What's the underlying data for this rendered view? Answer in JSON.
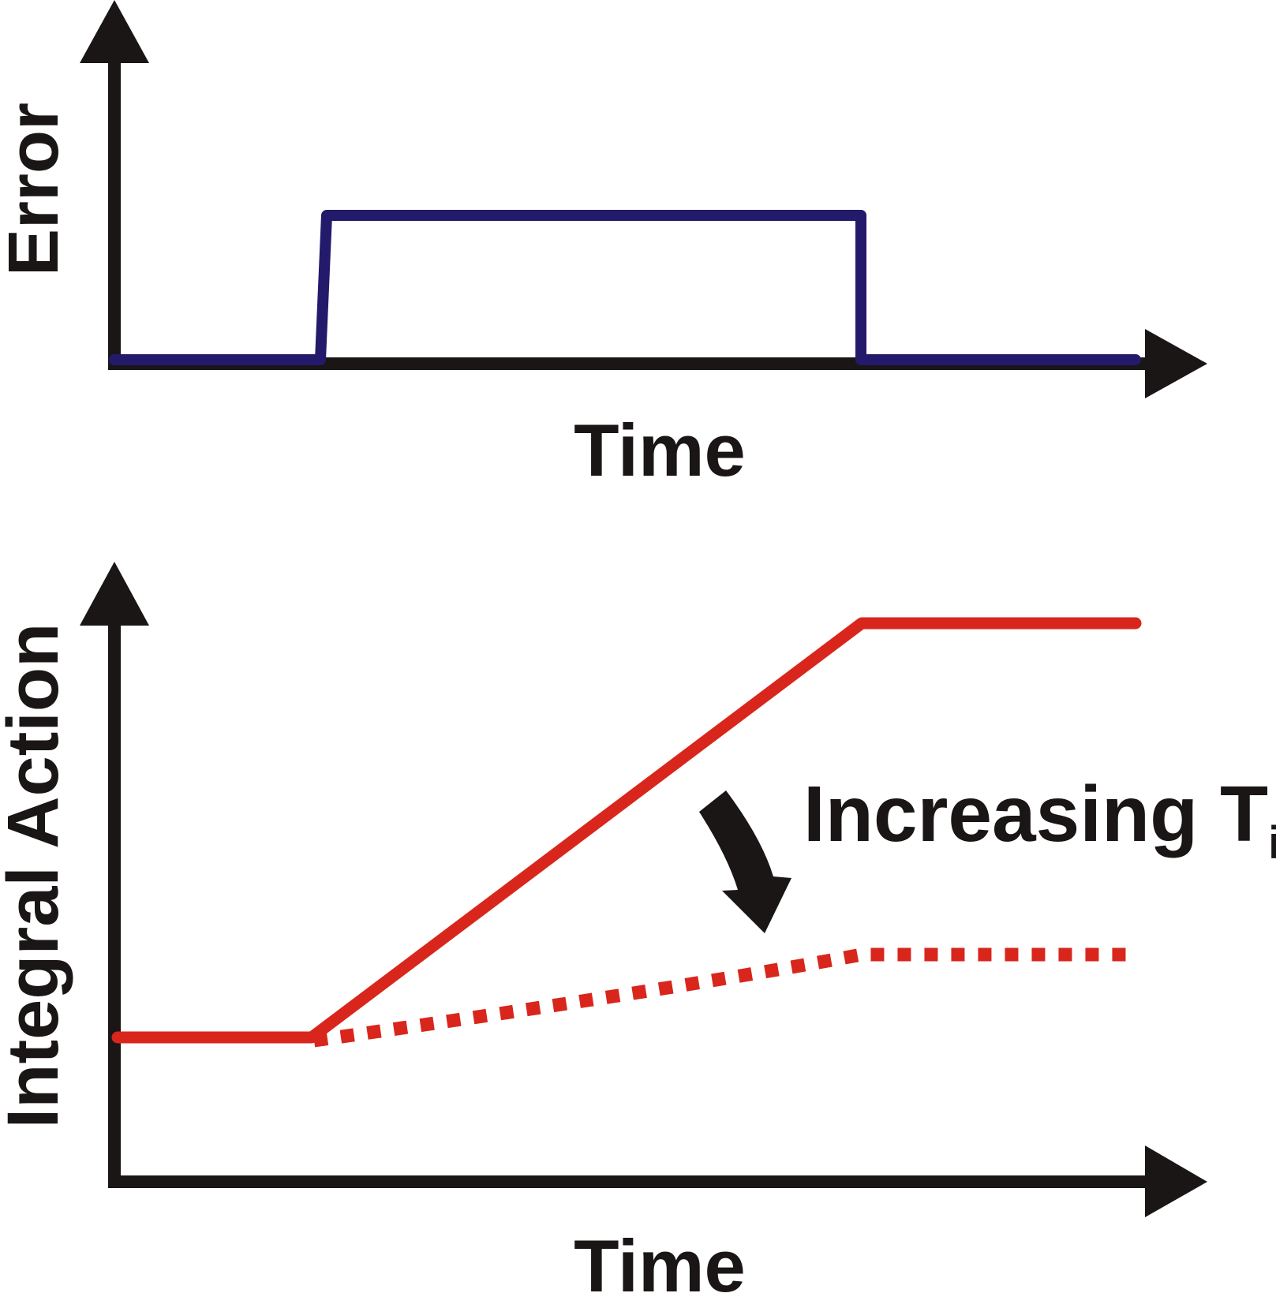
{
  "colors": {
    "axis": "#1a1616",
    "error_signal": "#231a6b",
    "integral_action": "#d9261c"
  },
  "top_panel": {
    "ylabel": "Error",
    "xlabel": "Time"
  },
  "bottom_panel": {
    "ylabel": "Integral Action",
    "xlabel": "Time",
    "annotation": {
      "text": "Increasing T",
      "subscript": "i"
    }
  }
}
